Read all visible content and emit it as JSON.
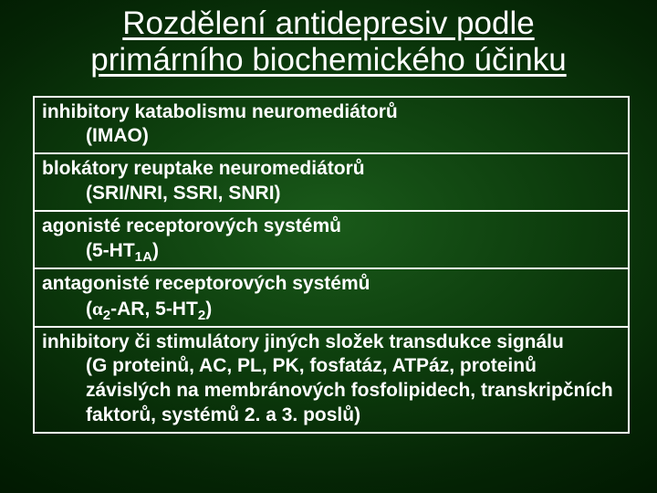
{
  "title_line1": "Rozdělení antidepresiv podle",
  "title_line2": "primárního biochemického účinku",
  "rows": [
    {
      "main": "inhibitory katabolismu neuromediátorů",
      "sub": "(IMAO)"
    },
    {
      "main": "blokátory reuptake neuromediátorů",
      "sub": "(SRI/NRI, SSRI, SNRI)"
    },
    {
      "main": "agonisté receptorových systémů",
      "sub_html": "(5-HT<sub>1A</sub>)"
    },
    {
      "main": "antagonisté receptorových systémů",
      "sub_html": "(<span class='alpha'>α</span><sub>2</sub>-AR, 5-HT<sub>2</sub>)"
    },
    {
      "main": "inhibitory či stimulátory jiných složek transdukce signálu",
      "sub": "(G proteinů, AC, PL, PK, fosfatáz, ATPáz, proteinů závislých na membránových fosfolipidech, transkripčních faktorů, systémů 2. a 3. poslů)"
    }
  ],
  "colors": {
    "text": "#ffffff",
    "border": "#ffffff",
    "bg_center": "#1a5a1a",
    "bg_edge": "#001500"
  },
  "fontsize": {
    "title": 35,
    "row": 21
  }
}
